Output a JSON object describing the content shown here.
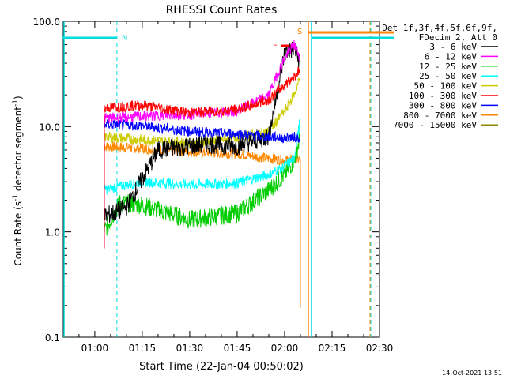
{
  "chart_data": {
    "type": "line",
    "title": "RHESSI Count Rates",
    "xlabel": "Start Time (22-Jan-04 00:50:02)",
    "ylabel": "Count Rate (s",
    "ylabel_sup": "-1",
    "ylabel_mid": " detector segment",
    "ylabel_end": ")",
    "yscale": "log",
    "ylim": [
      0.1,
      100
    ],
    "xlim": [
      "00:50:02",
      "02:30:00"
    ],
    "x_ticks": [
      "01:00",
      "01:15",
      "01:30",
      "01:45",
      "02:00",
      "02:15",
      "02:30"
    ],
    "y_ticks": [
      "0.1",
      "1.0",
      "10.0",
      "100.0"
    ],
    "footer": "14-Oct-2021 13:51",
    "legend_header": [
      "Det 1f,3f,4f,5f,6f,9f,",
      "FDecim 2, Att 0"
    ],
    "series": [
      {
        "name": "3 - 6 keV",
        "color": "#000000",
        "points": [
          [
            "01:03",
            1.4
          ],
          [
            "01:10",
            1.7
          ],
          [
            "01:20",
            6.0
          ],
          [
            "01:35",
            6.8
          ],
          [
            "01:45",
            6.5
          ],
          [
            "01:55",
            8.0
          ],
          [
            "02:00",
            50.0
          ],
          [
            "02:03",
            55.0
          ],
          [
            "02:05",
            40.0
          ]
        ]
      },
      {
        "name": "6 - 12 keV",
        "color": "#ff00ff",
        "points": [
          [
            "01:03",
            12.0
          ],
          [
            "01:15",
            12.5
          ],
          [
            "01:30",
            13.0
          ],
          [
            "01:45",
            14.0
          ],
          [
            "01:55",
            20.0
          ],
          [
            "02:00",
            45.0
          ],
          [
            "02:03",
            60.0
          ],
          [
            "02:05",
            45.0
          ]
        ]
      },
      {
        "name": "12 - 25 keV",
        "color": "#00cc00",
        "points": [
          [
            "01:03",
            1.0
          ],
          [
            "01:08",
            1.9
          ],
          [
            "01:15",
            1.8
          ],
          [
            "01:30",
            1.3
          ],
          [
            "01:45",
            1.5
          ],
          [
            "01:55",
            2.5
          ],
          [
            "02:00",
            3.5
          ],
          [
            "02:03",
            4.8
          ],
          [
            "02:05",
            8.0
          ]
        ]
      },
      {
        "name": "25 - 50 keV",
        "color": "#00ffff",
        "points": [
          [
            "01:03",
            2.5
          ],
          [
            "01:15",
            3.0
          ],
          [
            "01:30",
            2.8
          ],
          [
            "01:45",
            2.9
          ],
          [
            "01:55",
            3.5
          ],
          [
            "02:00",
            4.2
          ],
          [
            "02:03",
            5.0
          ],
          [
            "02:05",
            12.0
          ]
        ]
      },
      {
        "name": "50 - 100 keV",
        "color": "#cccc00",
        "points": [
          [
            "01:03",
            8.0
          ],
          [
            "01:15",
            7.5
          ],
          [
            "01:30",
            7.0
          ],
          [
            "01:45",
            7.8
          ],
          [
            "01:55",
            9.0
          ],
          [
            "02:00",
            14.0
          ],
          [
            "02:03",
            20.0
          ],
          [
            "02:05",
            30.0
          ]
        ]
      },
      {
        "name": "100 - 300 keV",
        "color": "#ff0000",
        "points": [
          [
            "01:03",
            15.0
          ],
          [
            "01:15",
            16.0
          ],
          [
            "01:30",
            13.5
          ],
          [
            "01:45",
            14.5
          ],
          [
            "01:55",
            18.0
          ],
          [
            "02:00",
            25.0
          ],
          [
            "02:03",
            30.0
          ],
          [
            "02:05",
            35.0
          ]
        ]
      },
      {
        "name": "300 - 800 keV",
        "color": "#0000ff",
        "points": [
          [
            "01:03",
            10.5
          ],
          [
            "01:15",
            10.2
          ],
          [
            "01:30",
            9.0
          ],
          [
            "01:45",
            8.5
          ],
          [
            "01:55",
            8.0
          ],
          [
            "02:00",
            7.8
          ],
          [
            "02:03",
            8.0
          ],
          [
            "02:05",
            7.8
          ]
        ]
      },
      {
        "name": "800 - 7000 keV",
        "color": "#ff8800",
        "points": [
          [
            "01:03",
            6.5
          ],
          [
            "01:15",
            6.2
          ],
          [
            "01:30",
            5.8
          ],
          [
            "01:45",
            5.5
          ],
          [
            "01:55",
            5.0
          ],
          [
            "02:00",
            4.8
          ],
          [
            "02:03",
            4.8
          ],
          [
            "02:05",
            4.9
          ]
        ]
      },
      {
        "name": "7000 - 15000 keV",
        "color": "#888800",
        "points": []
      }
    ],
    "annotations": [
      {
        "label": "N",
        "color": "#00dddd"
      },
      {
        "label": "F",
        "color": "#ff0000"
      },
      {
        "label": "S",
        "color": "#ff8800"
      }
    ]
  }
}
